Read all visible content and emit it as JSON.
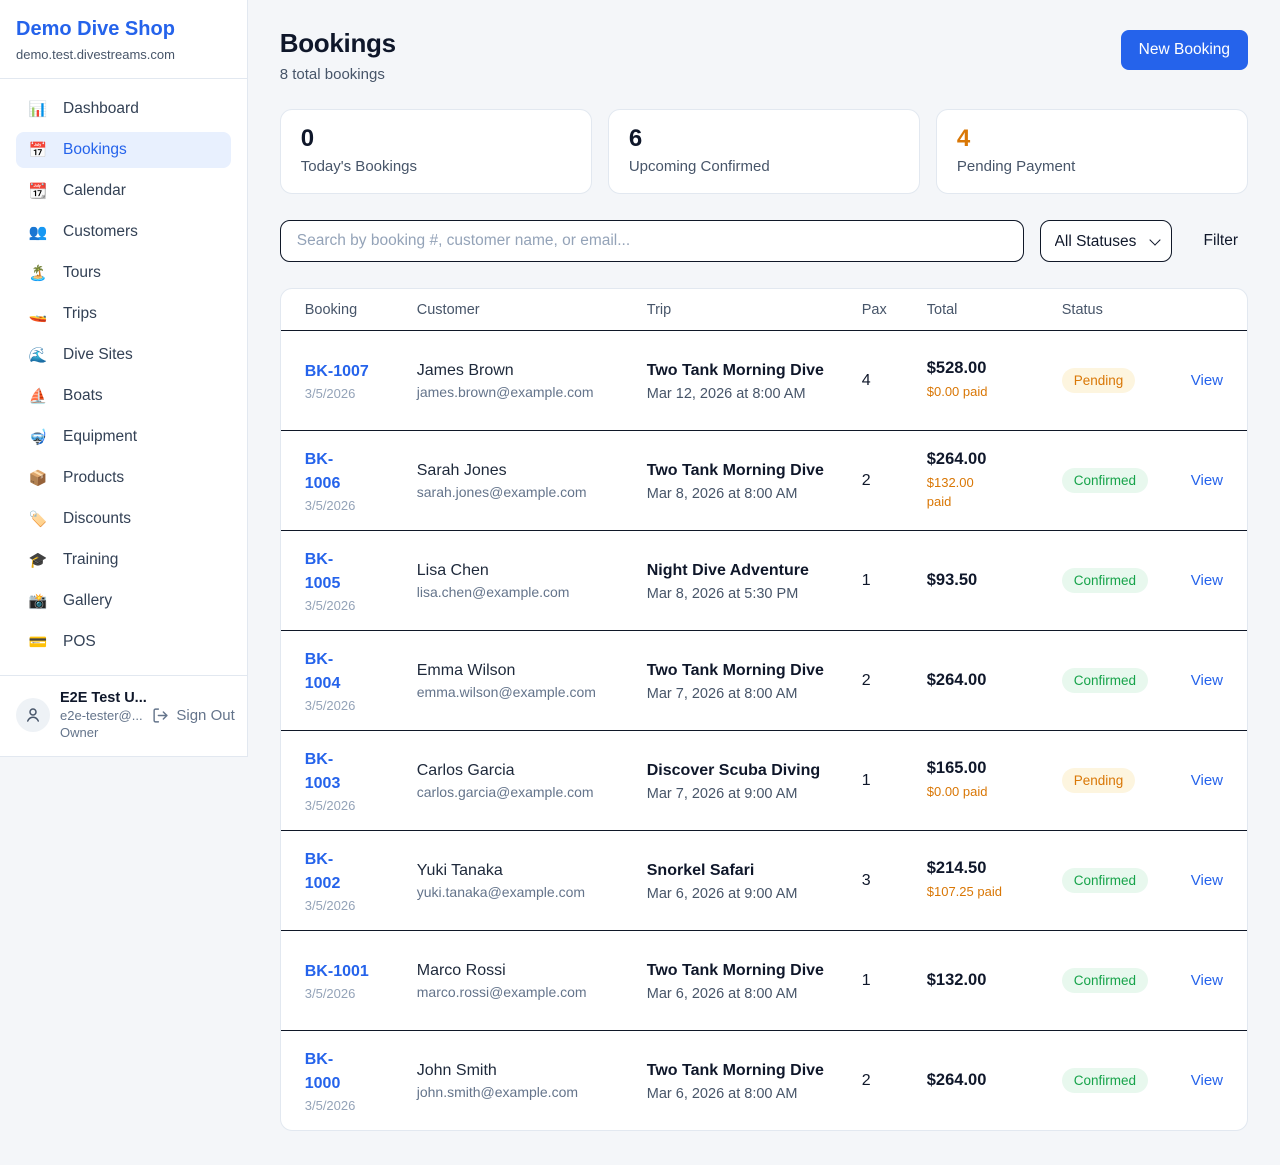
{
  "sidebar": {
    "brand": "Demo Dive Shop",
    "domain": "demo.test.divestreams.com",
    "items": [
      {
        "label": "Dashboard",
        "icon": "📊",
        "icon_name": "bar-chart-icon",
        "active": false
      },
      {
        "label": "Bookings",
        "icon": "📅",
        "icon_name": "calendar-icon",
        "active": true
      },
      {
        "label": "Calendar",
        "icon": "📆",
        "icon_name": "tear-calendar-icon",
        "active": false
      },
      {
        "label": "Customers",
        "icon": "👥",
        "icon_name": "people-icon",
        "active": false
      },
      {
        "label": "Tours",
        "icon": "🏝️",
        "icon_name": "island-icon",
        "active": false
      },
      {
        "label": "Trips",
        "icon": "🚤",
        "icon_name": "speedboat-icon",
        "active": false
      },
      {
        "label": "Dive Sites",
        "icon": "🌊",
        "icon_name": "wave-icon",
        "active": false
      },
      {
        "label": "Boats",
        "icon": "⛵",
        "icon_name": "sailboat-icon",
        "active": false
      },
      {
        "label": "Equipment",
        "icon": "🤿",
        "icon_name": "dive-mask-icon",
        "active": false
      },
      {
        "label": "Products",
        "icon": "📦",
        "icon_name": "package-icon",
        "active": false
      },
      {
        "label": "Discounts",
        "icon": "🏷️",
        "icon_name": "tag-icon",
        "active": false
      },
      {
        "label": "Training",
        "icon": "🎓",
        "icon_name": "grad-cap-icon",
        "active": false
      },
      {
        "label": "Gallery",
        "icon": "📸",
        "icon_name": "camera-icon",
        "active": false
      },
      {
        "label": "POS",
        "icon": "💳",
        "icon_name": "credit-card-icon",
        "active": false
      }
    ],
    "user": {
      "name": "E2E Test U...",
      "email": "e2e-tester@...",
      "role": "Owner",
      "sign_out": "Sign Out"
    }
  },
  "header": {
    "title": "Bookings",
    "subtitle": "8 total bookings",
    "new_booking_label": "New Booking"
  },
  "stats": [
    {
      "value": "0",
      "label": "Today's Bookings",
      "accent": "dark"
    },
    {
      "value": "6",
      "label": "Upcoming Confirmed",
      "accent": "dark"
    },
    {
      "value": "4",
      "label": "Pending Payment",
      "accent": "orange"
    }
  ],
  "filters": {
    "search_placeholder": "Search by booking #, customer name, or email...",
    "status_selected": "All Statuses",
    "filter_label": "Filter"
  },
  "table": {
    "headers": [
      "Booking",
      "Customer",
      "Trip",
      "Pax",
      "Total",
      "Status"
    ],
    "view_label": "View",
    "rows": [
      {
        "id": "BK-1007",
        "id_display": "BK-1007",
        "date": "3/5/2026",
        "customer": "James Brown",
        "email": "james.brown@example.com",
        "trip": "Two Tank Morning Dive",
        "datetime": "Mar 12, 2026 at 8:00 AM",
        "pax": "4",
        "total": "$528.00",
        "paid": "$0.00 paid",
        "status": "Pending",
        "status_type": "pending"
      },
      {
        "id": "BK-1006",
        "id_display": "BK-\n1006",
        "date": "3/5/2026",
        "customer": "Sarah Jones",
        "email": "sarah.jones@example.com",
        "trip": "Two Tank Morning Dive",
        "datetime": "Mar 8, 2026 at 8:00 AM",
        "pax": "2",
        "total": "$264.00",
        "paid": "$132.00\npaid",
        "status": "Confirmed",
        "status_type": "confirmed"
      },
      {
        "id": "BK-1005",
        "id_display": "BK-\n1005",
        "date": "3/5/2026",
        "customer": "Lisa Chen",
        "email": "lisa.chen@example.com",
        "trip": "Night Dive Adventure",
        "datetime": "Mar 8, 2026 at 5:30 PM",
        "pax": "1",
        "total": "$93.50",
        "paid": "",
        "status": "Confirmed",
        "status_type": "confirmed"
      },
      {
        "id": "BK-1004",
        "id_display": "BK-\n1004",
        "date": "3/5/2026",
        "customer": "Emma Wilson",
        "email": "emma.wilson@example.com",
        "trip": "Two Tank Morning Dive",
        "datetime": "Mar 7, 2026 at 8:00 AM",
        "pax": "2",
        "total": "$264.00",
        "paid": "",
        "status": "Confirmed",
        "status_type": "confirmed"
      },
      {
        "id": "BK-1003",
        "id_display": "BK-\n1003",
        "date": "3/5/2026",
        "customer": "Carlos Garcia",
        "email": "carlos.garcia@example.com",
        "trip": "Discover Scuba Diving",
        "datetime": "Mar 7, 2026 at 9:00 AM",
        "pax": "1",
        "total": "$165.00",
        "paid": "$0.00 paid",
        "status": "Pending",
        "status_type": "pending"
      },
      {
        "id": "BK-1002",
        "id_display": "BK-\n1002",
        "date": "3/5/2026",
        "customer": "Yuki Tanaka",
        "email": "yuki.tanaka@example.com",
        "trip": "Snorkel Safari",
        "datetime": "Mar 6, 2026 at 9:00 AM",
        "pax": "3",
        "total": "$214.50",
        "paid": "$107.25 paid",
        "status": "Confirmed",
        "status_type": "confirmed"
      },
      {
        "id": "BK-1001",
        "id_display": "BK-1001",
        "date": "3/5/2026",
        "customer": "Marco Rossi",
        "email": "marco.rossi@example.com",
        "trip": "Two Tank Morning Dive",
        "datetime": "Mar 6, 2026 at 8:00 AM",
        "pax": "1",
        "total": "$132.00",
        "paid": "",
        "status": "Confirmed",
        "status_type": "confirmed"
      },
      {
        "id": "BK-1000",
        "id_display": "BK-\n1000",
        "date": "3/5/2026",
        "customer": "John Smith",
        "email": "john.smith@example.com",
        "trip": "Two Tank Morning Dive",
        "datetime": "Mar 6, 2026 at 8:00 AM",
        "pax": "2",
        "total": "$264.00",
        "paid": "",
        "status": "Confirmed",
        "status_type": "confirmed"
      }
    ]
  },
  "colors": {
    "accent_blue": "#2563eb",
    "pending_orange": "#d97706",
    "confirmed_green": "#16a34a",
    "active_nav_bg": "#e8f0fe"
  }
}
